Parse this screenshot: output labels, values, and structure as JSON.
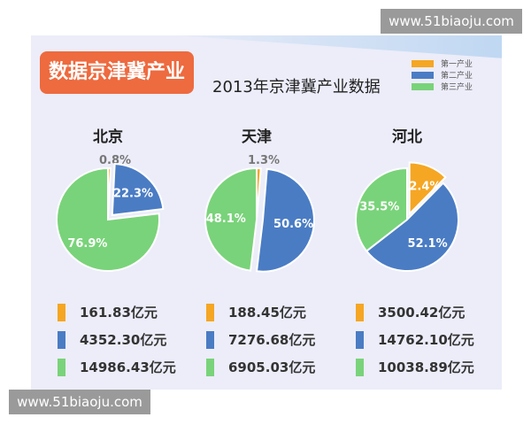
{
  "badge": "数据京津冀产业",
  "title": "2013年京津冀产业数据",
  "legend": [
    {
      "label": "第一产业",
      "color": "#f5a623"
    },
    {
      "label": "第二产业",
      "color": "#4a7cc4"
    },
    {
      "label": "第三产业",
      "color": "#79d37a"
    }
  ],
  "watermark_top": "www.51biaoju.com",
  "watermark_bottom": "www.51biaoju.com",
  "chart_data": {
    "type": "pie",
    "title": "2013年京津冀产业数据",
    "series_names": [
      "第一产业",
      "第二产业",
      "第三产业"
    ],
    "colors": [
      "#f5a623",
      "#4a7cc4",
      "#79d37a"
    ],
    "legend_position": "top-right",
    "charts": [
      {
        "name": "北京",
        "percents": [
          0.8,
          22.3,
          76.9
        ],
        "percent_labels": [
          "0.8%",
          "22.3%",
          "76.9%"
        ],
        "values": [
          "161.83亿元",
          "4352.30亿元",
          "14986.43亿元"
        ]
      },
      {
        "name": "天津",
        "percents": [
          1.3,
          50.6,
          48.1
        ],
        "percent_labels": [
          "1.3%",
          "50.6%",
          "48.1%"
        ],
        "values": [
          "188.45亿元",
          "7276.68亿元",
          "6905.03亿元"
        ]
      },
      {
        "name": "河北",
        "percents": [
          12.4,
          52.1,
          35.5
        ],
        "percent_labels": [
          "12.4%",
          "52.1%",
          "35.5%"
        ],
        "values": [
          "3500.42亿元",
          "14762.10亿元",
          "10038.89亿元"
        ]
      }
    ]
  }
}
